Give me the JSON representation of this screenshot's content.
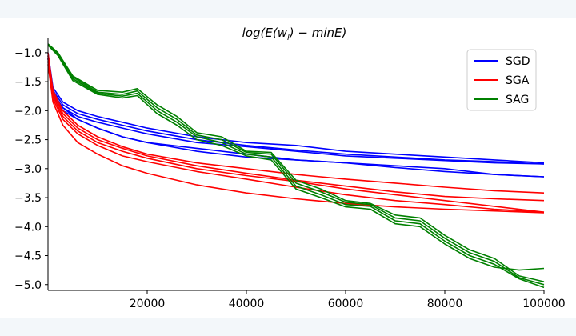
{
  "chart_data": {
    "type": "line",
    "title": "log(E(w_l) − minE)",
    "title_parts": {
      "pre": "log(E(w",
      "sub": "l",
      "post": ") − minE)"
    },
    "xlabel": "",
    "ylabel": "",
    "xlim": [
      0,
      100000
    ],
    "ylim": [
      -5.1,
      -0.85
    ],
    "xticks": [
      20000,
      40000,
      60000,
      80000,
      100000
    ],
    "yticks": [
      -1.0,
      -1.5,
      -2.0,
      -2.5,
      -3.0,
      -3.5,
      -4.0,
      -4.5,
      -5.0
    ],
    "legend": {
      "position": "top-right"
    },
    "series": [
      {
        "name": "SGD",
        "color": "#0000ff",
        "runs": [
          {
            "x": [
              0,
              1000,
              3000,
              6000,
              10000,
              15000,
              20000,
              30000,
              40000,
              50000,
              60000,
              70000,
              80000,
              90000,
              100000
            ],
            "y": [
              -1.0,
              -1.6,
              -1.85,
              -2.0,
              -2.1,
              -2.2,
              -2.3,
              -2.45,
              -2.55,
              -2.6,
              -2.7,
              -2.75,
              -2.8,
              -2.85,
              -2.9
            ]
          },
          {
            "x": [
              0,
              1000,
              3000,
              6000,
              10000,
              15000,
              20000,
              30000,
              40000,
              50000,
              60000,
              70000,
              80000,
              90000,
              100000
            ],
            "y": [
              -1.05,
              -1.65,
              -1.9,
              -2.05,
              -2.15,
              -2.25,
              -2.35,
              -2.5,
              -2.6,
              -2.68,
              -2.75,
              -2.8,
              -2.85,
              -2.88,
              -2.92
            ]
          },
          {
            "x": [
              0,
              1000,
              3000,
              6000,
              10000,
              15000,
              20000,
              30000,
              40000,
              50000,
              60000,
              70000,
              80000,
              90000,
              100000
            ],
            "y": [
              -1.1,
              -1.7,
              -1.95,
              -2.1,
              -2.2,
              -2.3,
              -2.4,
              -2.55,
              -2.62,
              -2.7,
              -2.78,
              -2.82,
              -2.86,
              -2.9,
              -2.92
            ]
          },
          {
            "x": [
              0,
              1000,
              3000,
              6000,
              10000,
              15000,
              20000,
              30000,
              40000,
              50000,
              60000,
              70000,
              80000,
              90000,
              100000
            ],
            "y": [
              -1.15,
              -1.75,
              -2.0,
              -2.15,
              -2.3,
              -2.45,
              -2.55,
              -2.7,
              -2.8,
              -2.85,
              -2.9,
              -2.98,
              -3.05,
              -3.1,
              -3.14
            ]
          },
          {
            "x": [
              0,
              1000,
              3000,
              6000,
              10000,
              15000,
              20000,
              30000,
              40000,
              50000,
              60000,
              70000,
              80000,
              90000,
              100000
            ],
            "y": [
              -1.1,
              -1.7,
              -1.95,
              -2.15,
              -2.3,
              -2.45,
              -2.55,
              -2.65,
              -2.75,
              -2.85,
              -2.9,
              -2.95,
              -3.0,
              -3.1,
              -3.14
            ]
          }
        ]
      },
      {
        "name": "SGA",
        "color": "#ff0000",
        "runs": [
          {
            "x": [
              0,
              1000,
              3000,
              6000,
              10000,
              15000,
              20000,
              30000,
              40000,
              50000,
              60000,
              70000,
              80000,
              90000,
              100000
            ],
            "y": [
              -1.0,
              -1.65,
              -2.0,
              -2.25,
              -2.45,
              -2.62,
              -2.75,
              -2.9,
              -3.0,
              -3.1,
              -3.18,
              -3.25,
              -3.32,
              -3.38,
              -3.42
            ]
          },
          {
            "x": [
              0,
              1000,
              3000,
              6000,
              10000,
              15000,
              20000,
              30000,
              40000,
              50000,
              60000,
              70000,
              80000,
              90000,
              100000
            ],
            "y": [
              -1.05,
              -1.7,
              -2.05,
              -2.3,
              -2.5,
              -2.65,
              -2.78,
              -2.95,
              -3.08,
              -3.2,
              -3.3,
              -3.4,
              -3.48,
              -3.52,
              -3.55
            ]
          },
          {
            "x": [
              0,
              1000,
              3000,
              6000,
              10000,
              15000,
              20000,
              30000,
              40000,
              50000,
              60000,
              70000,
              80000,
              90000,
              100000
            ],
            "y": [
              -1.1,
              -1.75,
              -2.1,
              -2.35,
              -2.55,
              -2.7,
              -2.82,
              -3.0,
              -3.12,
              -3.22,
              -3.35,
              -3.45,
              -3.55,
              -3.65,
              -3.75
            ]
          },
          {
            "x": [
              0,
              1000,
              3000,
              6000,
              10000,
              15000,
              20000,
              30000,
              40000,
              50000,
              60000,
              70000,
              80000,
              90000,
              100000
            ],
            "y": [
              -1.15,
              -1.8,
              -2.15,
              -2.4,
              -2.6,
              -2.78,
              -2.88,
              -3.05,
              -3.18,
              -3.32,
              -3.45,
              -3.55,
              -3.62,
              -3.7,
              -3.75
            ]
          },
          {
            "x": [
              0,
              1000,
              3000,
              6000,
              10000,
              15000,
              20000,
              30000,
              40000,
              50000,
              60000,
              70000,
              80000,
              90000,
              100000
            ],
            "y": [
              -1.2,
              -1.85,
              -2.25,
              -2.55,
              -2.75,
              -2.95,
              -3.08,
              -3.28,
              -3.42,
              -3.52,
              -3.6,
              -3.66,
              -3.7,
              -3.73,
              -3.76
            ]
          }
        ]
      },
      {
        "name": "SAG",
        "color": "#008000",
        "runs": [
          {
            "x": [
              0,
              2000,
              5000,
              10000,
              15000,
              18000,
              22000,
              26000,
              30000,
              35000,
              40000,
              45000,
              50000,
              55000,
              60000,
              65000,
              70000,
              75000,
              80000,
              85000,
              90000,
              95000,
              100000
            ],
            "y": [
              -0.85,
              -1.0,
              -1.4,
              -1.65,
              -1.68,
              -1.62,
              -1.9,
              -2.1,
              -2.38,
              -2.45,
              -2.7,
              -2.72,
              -3.2,
              -3.35,
              -3.55,
              -3.6,
              -3.8,
              -3.85,
              -4.15,
              -4.4,
              -4.55,
              -4.85,
              -4.95
            ]
          },
          {
            "x": [
              0,
              2000,
              5000,
              10000,
              15000,
              18000,
              22000,
              26000,
              30000,
              35000,
              40000,
              45000,
              50000,
              55000,
              60000,
              65000,
              70000,
              75000,
              80000,
              85000,
              90000,
              95000,
              100000
            ],
            "y": [
              -0.85,
              -1.0,
              -1.42,
              -1.68,
              -1.72,
              -1.66,
              -1.95,
              -2.15,
              -2.42,
              -2.5,
              -2.72,
              -2.75,
              -3.25,
              -3.4,
              -3.58,
              -3.62,
              -3.85,
              -3.9,
              -4.2,
              -4.45,
              -4.6,
              -4.88,
              -5.0
            ]
          },
          {
            "x": [
              0,
              2000,
              5000,
              10000,
              15000,
              18000,
              22000,
              26000,
              30000,
              35000,
              40000,
              45000,
              50000,
              55000,
              60000,
              65000,
              70000,
              75000,
              80000,
              85000,
              90000,
              95000,
              100000
            ],
            "y": [
              -0.86,
              -1.02,
              -1.45,
              -1.7,
              -1.75,
              -1.7,
              -2.0,
              -2.2,
              -2.45,
              -2.55,
              -2.75,
              -2.8,
              -3.3,
              -3.45,
              -3.62,
              -3.65,
              -3.9,
              -3.95,
              -4.25,
              -4.5,
              -4.65,
              -4.9,
              -5.05
            ]
          },
          {
            "x": [
              0,
              2000,
              5000,
              10000,
              15000,
              18000,
              22000,
              26000,
              30000,
              35000,
              40000,
              45000,
              50000,
              55000,
              60000,
              65000,
              70000,
              75000,
              80000,
              85000,
              90000,
              95000,
              100000
            ],
            "y": [
              -0.87,
              -1.05,
              -1.48,
              -1.72,
              -1.78,
              -1.74,
              -2.05,
              -2.25,
              -2.5,
              -2.6,
              -2.78,
              -2.85,
              -3.35,
              -3.5,
              -3.66,
              -3.7,
              -3.95,
              -4.0,
              -4.3,
              -4.55,
              -4.7,
              -4.75,
              -4.72
            ]
          }
        ]
      }
    ]
  }
}
